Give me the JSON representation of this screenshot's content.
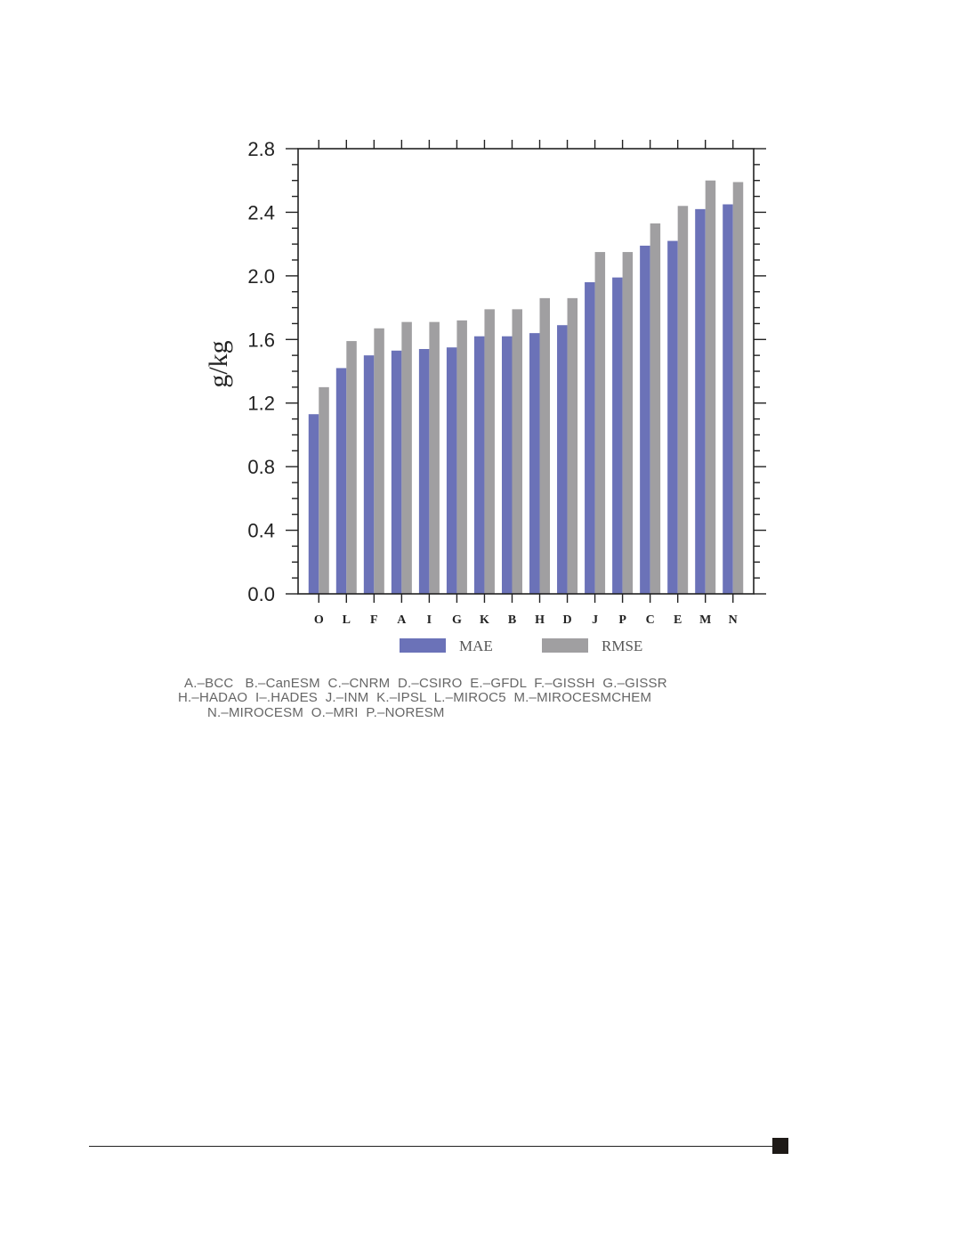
{
  "chart_data": {
    "type": "bar",
    "ylabel": "g/kg",
    "xlabel": "",
    "ylim": [
      0.0,
      2.8
    ],
    "yticks": [
      "0.0",
      "0.4",
      "0.8",
      "1.2",
      "1.6",
      "2.0",
      "2.4",
      "2.8"
    ],
    "categories": [
      "O",
      "L",
      "F",
      "A",
      "I",
      "G",
      "K",
      "B",
      "H",
      "D",
      "J",
      "P",
      "C",
      "E",
      "M",
      "N"
    ],
    "series": [
      {
        "name": "MAE",
        "color": "#6b72b8",
        "values": [
          1.13,
          1.42,
          1.5,
          1.53,
          1.54,
          1.55,
          1.62,
          1.62,
          1.64,
          1.69,
          1.96,
          1.99,
          2.19,
          2.22,
          2.42,
          2.45
        ]
      },
      {
        "name": "RMSE",
        "color": "#a09fa1",
        "values": [
          1.3,
          1.59,
          1.67,
          1.71,
          1.71,
          1.72,
          1.79,
          1.79,
          1.86,
          1.86,
          2.15,
          2.15,
          2.33,
          2.44,
          2.6,
          2.59
        ]
      }
    ],
    "legend": "bottom",
    "grid": false
  },
  "model_key": [
    "A.–BCC   B.–CanESM  C.–CNRM  D.–CSIRO  E.–GFDL  F.–GISSH  G.–GISSR",
    "H.–HADAO  I–.HADES  J.–INM  K.–IPSL  L.–MIROC5  M.–MIROCESMCHEM",
    "N.–MIROCESM  O.–MRI  P.–NORESM"
  ]
}
